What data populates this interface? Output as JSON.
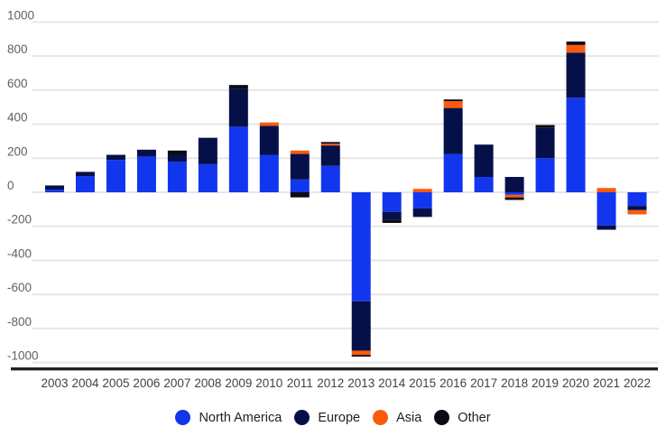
{
  "page": {
    "background": "#ffffff",
    "grid_color": "#e6e6e6",
    "axis_line_color": "#212121",
    "y_label_color": "#616161",
    "x_label_color": "#424242",
    "legend_text_color": "#212121"
  },
  "chart_data": {
    "type": "bar",
    "stacked": true,
    "title": "",
    "xlabel": "",
    "ylabel": "",
    "grid": true,
    "legend_position": "bottom",
    "ylim": [
      -1000,
      1000
    ],
    "yticks": [
      1000,
      800,
      600,
      400,
      200,
      0,
      -200,
      -400,
      -600,
      -800,
      -1000
    ],
    "categories": [
      "2003",
      "2004",
      "2005",
      "2006",
      "2007",
      "2008",
      "2009",
      "2010",
      "2011",
      "2012",
      "2013",
      "2014",
      "2015",
      "2016",
      "2017",
      "2018",
      "2019",
      "2020",
      "2021",
      "2022"
    ],
    "series": [
      {
        "name": "North America",
        "color": "#1136ee",
        "values": [
          15,
          95,
          190,
          210,
          180,
          165,
          385,
          220,
          75,
          155,
          -640,
          -115,
          -95,
          225,
          90,
          -15,
          200,
          555,
          -195,
          -80
        ]
      },
      {
        "name": "Europe",
        "color": "#051049",
        "values": [
          25,
          25,
          30,
          40,
          40,
          155,
          220,
          170,
          150,
          120,
          -290,
          -45,
          -50,
          270,
          190,
          90,
          180,
          265,
          -25,
          -25
        ]
      },
      {
        "name": "Asia",
        "color": "#fb5a0c",
        "values": [
          0,
          0,
          0,
          0,
          0,
          0,
          0,
          20,
          20,
          10,
          -25,
          0,
          20,
          40,
          0,
          -15,
          0,
          45,
          25,
          -25
        ]
      },
      {
        "name": "Other",
        "color": "#0b0b15",
        "values": [
          0,
          0,
          0,
          0,
          25,
          0,
          25,
          0,
          -30,
          10,
          -10,
          -20,
          0,
          10,
          0,
          -15,
          15,
          20,
          0,
          0
        ]
      }
    ]
  }
}
